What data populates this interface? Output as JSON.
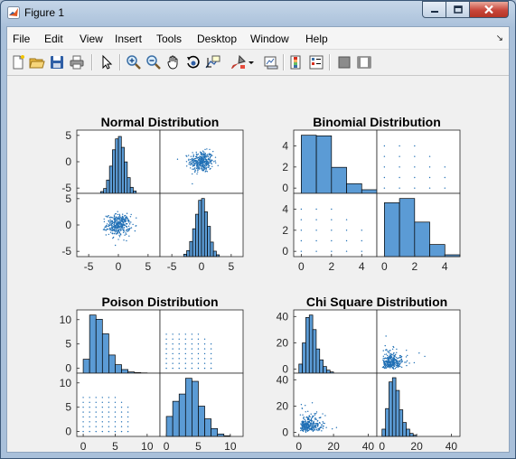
{
  "window": {
    "title": "Figure 1"
  },
  "menu": [
    "File",
    "Edit",
    "View",
    "Insert",
    "Tools",
    "Desktop",
    "Window",
    "Help"
  ],
  "toolbar": [
    "new-figure-icon",
    "open-file-icon",
    "save-icon",
    "print-icon",
    "pointer-icon",
    "zoom-in-icon",
    "zoom-out-icon",
    "pan-hand-icon",
    "rotate-3d-icon",
    "data-cursor-icon",
    "brush-icon",
    "brush-dropdown-icon",
    "link-plot-icon",
    "insert-colorbar-icon",
    "insert-legend-icon",
    "hide-plot-tools-icon",
    "show-plot-tools-icon"
  ],
  "colors": {
    "bar_fill": "#5b9bd5",
    "marker": "#1f6fb5",
    "background": "#f0f0f0"
  },
  "chart_data": [
    {
      "type": "scatter-matrix",
      "title": "Normal Distribution",
      "diag_hist": [
        {
          "edges": [
            -3,
            -2.5,
            -2,
            -1.5,
            -1,
            -0.5,
            0,
            0.5,
            1,
            1.5,
            2,
            2.5,
            3
          ],
          "counts": [
            0.3,
            0.8,
            2.2,
            4.5,
            7.2,
            9.0,
            9.4,
            7.6,
            5.2,
            2.6,
            1.0,
            0.4
          ]
        },
        {
          "edges": [
            -3,
            -2.5,
            -2,
            -1.5,
            -1,
            -0.5,
            0,
            0.5,
            1,
            1.5,
            2,
            2.5,
            3
          ],
          "counts": [
            0.4,
            1.0,
            2.5,
            4.6,
            7.0,
            9.3,
            9.6,
            7.4,
            5.0,
            2.4,
            0.9,
            0.3
          ]
        }
      ],
      "diag_ymax": 10,
      "scatter": {
        "kind": "normal",
        "mean": 0,
        "sd": 1,
        "n": 350
      },
      "xlim": [
        -7,
        7
      ],
      "ylim": [
        -6,
        6
      ],
      "xticks": [
        -5,
        0,
        5
      ],
      "xtick_labels": [
        "-5",
        "0",
        "5"
      ],
      "yticks": [
        -5,
        0,
        5
      ],
      "ytick_labels": [
        "-5",
        "0",
        "5"
      ]
    },
    {
      "type": "scatter-matrix",
      "title": "Binomial Distribution",
      "diag_hist": [
        {
          "edges": [
            0,
            1,
            2,
            3,
            4,
            5
          ],
          "counts": [
            9.6,
            9.5,
            4.3,
            1.6,
            0.6
          ]
        },
        {
          "edges": [
            0,
            1,
            2,
            3,
            4,
            5
          ],
          "counts": [
            8.9,
            9.6,
            5.7,
            2.0,
            0.3
          ]
        }
      ],
      "diag_ymax": 10,
      "scatter": {
        "kind": "grid",
        "xs": [
          0,
          1,
          2,
          3,
          4
        ],
        "ys": [
          0,
          1,
          2,
          3,
          4
        ],
        "max_sum": 6
      },
      "xlim": [
        -0.5,
        5
      ],
      "ylim": [
        -0.5,
        5.5
      ],
      "xticks": [
        0,
        2,
        4
      ],
      "xtick_labels": [
        "0",
        "2",
        "4"
      ],
      "yticks": [
        0,
        2,
        4
      ],
      "ytick_labels": [
        "0",
        "2",
        "4"
      ]
    },
    {
      "type": "scatter-matrix",
      "title": "Poison Distribution",
      "diag_hist": [
        {
          "edges": [
            0,
            1,
            2,
            3,
            4,
            5,
            6,
            7,
            8,
            9,
            10
          ],
          "counts": [
            2.3,
            9.6,
            8.9,
            6.5,
            3.0,
            1.4,
            0.6,
            0.2,
            0.1,
            0.05
          ]
        },
        {
          "edges": [
            0,
            1,
            2,
            3,
            4,
            5,
            6,
            7,
            8,
            9,
            10
          ],
          "counts": [
            3.3,
            5.8,
            7.0,
            9.6,
            9.1,
            5.0,
            2.9,
            1.3,
            0.4,
            0.1
          ]
        }
      ],
      "diag_ymax": 10,
      "scatter": {
        "kind": "grid",
        "xs": [
          0,
          1,
          2,
          3,
          4,
          5,
          6,
          7
        ],
        "ys": [
          0,
          1,
          2,
          3,
          4,
          5,
          6,
          7
        ],
        "max_sum": 12
      },
      "xlim": [
        -1,
        12
      ],
      "ylim": [
        -1,
        12
      ],
      "xticks": [
        0,
        5,
        10
      ],
      "xtick_labels": [
        "0",
        "5",
        "10"
      ],
      "yticks": [
        0,
        5,
        10
      ],
      "ytick_labels": [
        "0",
        "5",
        "10"
      ]
    },
    {
      "type": "scatter-matrix",
      "title": "Chi Square Distribution",
      "diag_hist": [
        {
          "edges": [
            0,
            2,
            4,
            6,
            8,
            10,
            12,
            14,
            16,
            18,
            20
          ],
          "counts": [
            1.5,
            5.0,
            9.2,
            9.6,
            7.2,
            4.0,
            2.2,
            1.1,
            0.5,
            0.2
          ]
        },
        {
          "edges": [
            0,
            2,
            4,
            6,
            8,
            10,
            12,
            14,
            16,
            18,
            20
          ],
          "counts": [
            1.2,
            4.6,
            9.0,
            9.7,
            7.6,
            4.4,
            2.3,
            1.2,
            0.5,
            0.2
          ]
        }
      ],
      "diag_ymax": 10,
      "scatter": {
        "kind": "chisq",
        "df": 6,
        "n": 300
      },
      "xlim": [
        -3,
        45
      ],
      "ylim": [
        -3,
        45
      ],
      "xticks": [
        0,
        20,
        40
      ],
      "xtick_labels": [
        "0",
        "20",
        "40"
      ],
      "yticks": [
        0,
        20,
        40
      ],
      "ytick_labels": [
        "0",
        "20",
        "40"
      ]
    }
  ]
}
